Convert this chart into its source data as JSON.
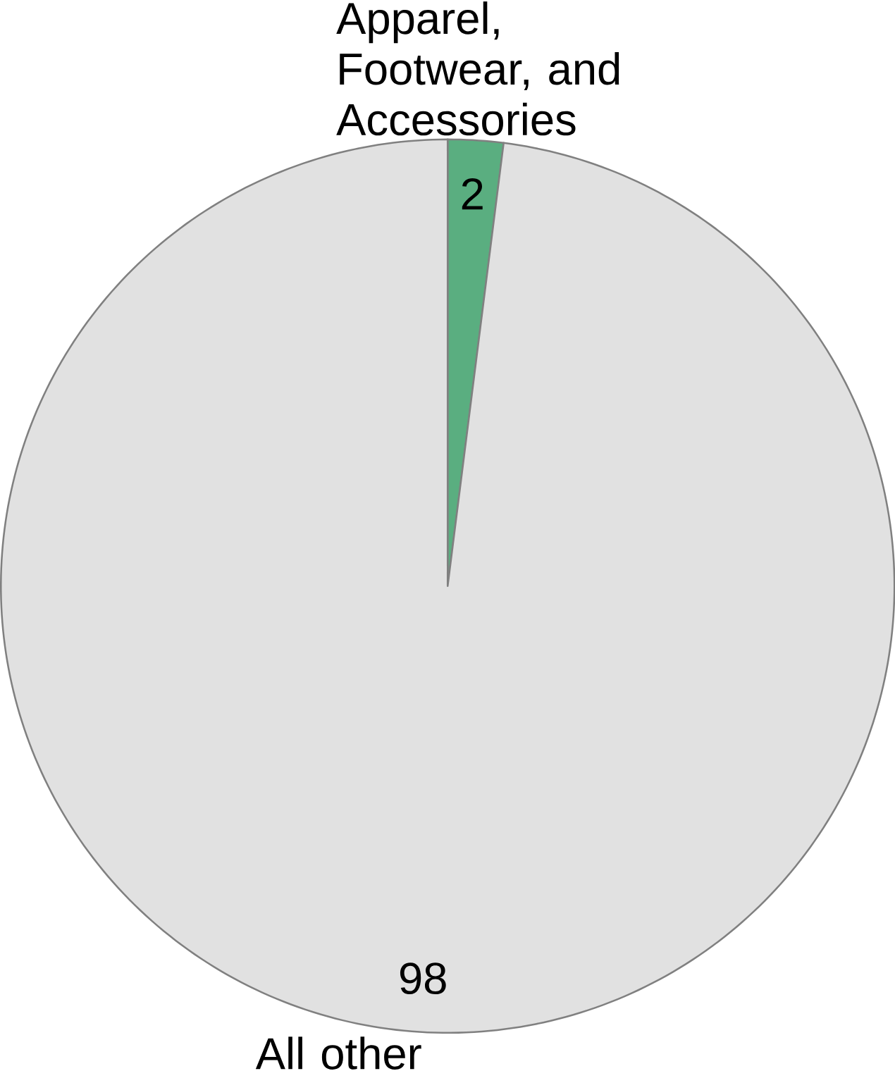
{
  "chart_data": {
    "type": "pie",
    "categories": [
      "Apparel, Footwear, and Accessories",
      "All other"
    ],
    "values": [
      2,
      98
    ],
    "colors": [
      "#5aae80",
      "#e1e1e1"
    ],
    "data_labels": true,
    "legend": false
  }
}
